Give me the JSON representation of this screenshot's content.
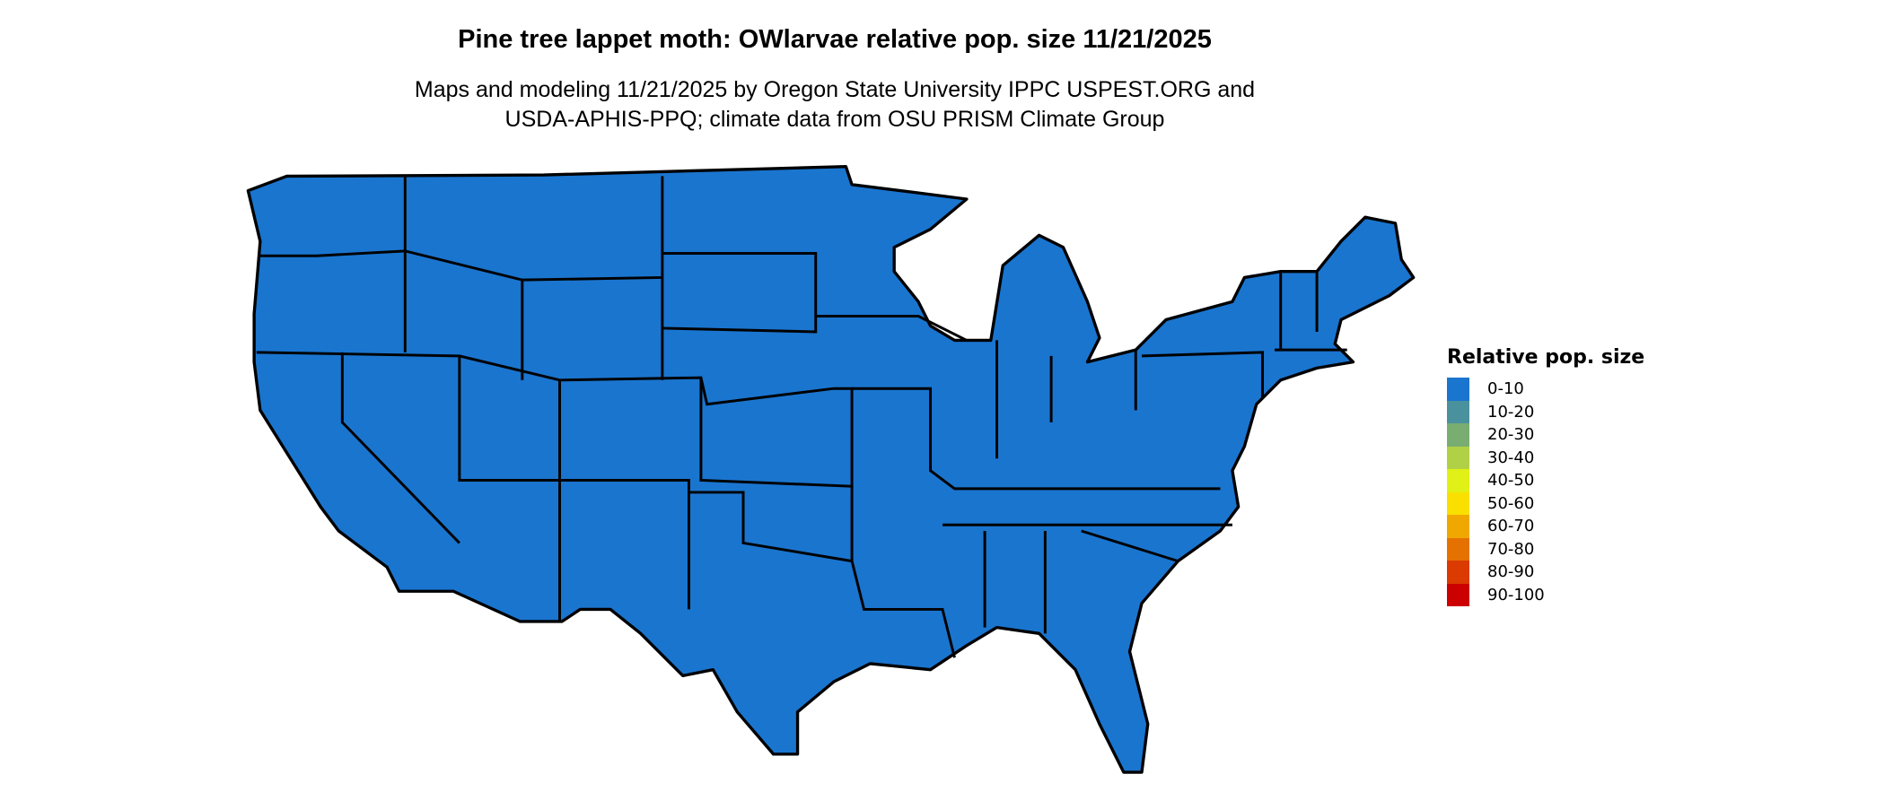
{
  "title": "Pine tree lappet moth: OWlarvae relative pop. size 11/21/2025",
  "subtitle_line1": "Maps and modeling 11/21/2025 by Oregon State University IPPC USPEST.ORG and",
  "subtitle_line2": "USDA-APHIS-PPQ; climate data from OSU PRISM Climate Group",
  "chart_data": {
    "type": "heatmap",
    "region": "contiguous United States with state boundaries",
    "fill_color": "#1a75cf",
    "dominant_class": "0-10",
    "legend": {
      "title": "Relative pop. size",
      "placement": "right",
      "entries": [
        {
          "label": "0-10",
          "color": "#1a75cf"
        },
        {
          "label": "10-20",
          "color": "#4a919e"
        },
        {
          "label": "20-30",
          "color": "#79ad72"
        },
        {
          "label": "30-40",
          "color": "#b0d045"
        },
        {
          "label": "40-50",
          "color": "#e1f016"
        },
        {
          "label": "50-60",
          "color": "#f9e000"
        },
        {
          "label": "60-70",
          "color": "#f0a800"
        },
        {
          "label": "70-80",
          "color": "#e57200"
        },
        {
          "label": "80-90",
          "color": "#db3a00"
        },
        {
          "label": "90-100",
          "color": "#cc0000"
        }
      ]
    }
  }
}
